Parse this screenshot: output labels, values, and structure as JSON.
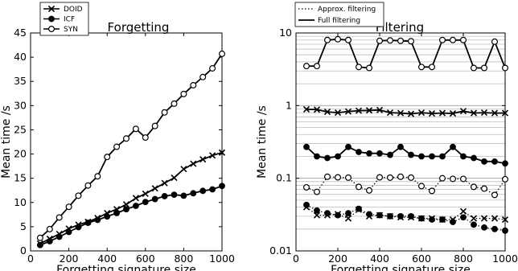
{
  "chart_data": [
    {
      "type": "line",
      "title": "Forgetting",
      "xlabel": "Forgetting signature size",
      "ylabel": "Mean time /s",
      "xlim": [
        0,
        1000
      ],
      "ylim": [
        0,
        45
      ],
      "xticks": [
        0,
        200,
        400,
        600,
        800,
        1000
      ],
      "yticks": [
        0,
        5,
        10,
        15,
        20,
        25,
        30,
        35,
        40,
        45
      ],
      "grid": false,
      "legend_position": "top-left (above axes)",
      "x": [
        50,
        100,
        150,
        200,
        250,
        300,
        350,
        400,
        450,
        500,
        550,
        600,
        650,
        700,
        750,
        800,
        850,
        900,
        950,
        1000
      ],
      "series": [
        {
          "name": "DOID",
          "marker": "x",
          "line": "solid",
          "values": [
            1.5,
            2.5,
            3.5,
            4.6,
            5.4,
            6.0,
            6.8,
            7.8,
            8.6,
            9.6,
            10.9,
            11.8,
            12.9,
            14.0,
            15.1,
            16.9,
            18.0,
            18.9,
            19.7,
            20.3
          ]
        },
        {
          "name": "ICF",
          "marker": "filled-circle",
          "line": "solid",
          "values": [
            1.2,
            2.0,
            2.9,
            3.9,
            4.9,
            5.8,
            6.4,
            7.1,
            7.8,
            8.6,
            9.3,
            10.1,
            10.7,
            11.3,
            11.6,
            11.4,
            11.9,
            12.4,
            12.7,
            13.4
          ]
        },
        {
          "name": "SYN",
          "marker": "open-circle",
          "line": "solid",
          "values": [
            2.7,
            4.5,
            6.9,
            9.1,
            11.4,
            13.5,
            15.4,
            19.4,
            21.5,
            23.2,
            25.2,
            23.4,
            25.8,
            28.6,
            30.4,
            32.4,
            34.2,
            35.9,
            37.7,
            40.7
          ]
        }
      ]
    },
    {
      "type": "line",
      "title": "Filtering",
      "xlabel": "Forgetting signature size",
      "ylabel": "Mean time /s",
      "xlim": [
        0,
        1000
      ],
      "ylim": [
        0.01,
        10
      ],
      "yscale": "log",
      "xticks": [
        0,
        200,
        400,
        600,
        800,
        1000
      ],
      "yticks": [
        0.01,
        0.1,
        1,
        10
      ],
      "ytick_labels": [
        "0.01",
        "0.1",
        "1",
        "10"
      ],
      "grid": "horizontal (major and minor)",
      "legend_position": "top-left (above axes)",
      "legend": [
        {
          "label": "Approx. filtering",
          "line": "dotted"
        },
        {
          "label": "Full filtering",
          "line": "solid"
        }
      ],
      "x": [
        50,
        100,
        150,
        200,
        250,
        300,
        350,
        400,
        450,
        500,
        550,
        600,
        650,
        700,
        750,
        800,
        850,
        900,
        950,
        1000
      ],
      "series": [
        {
          "group": "Full filtering",
          "marker": "open-circle",
          "line": "solid",
          "values": [
            3.5,
            3.5,
            8.0,
            8.2,
            8.0,
            3.4,
            3.3,
            7.8,
            7.9,
            7.8,
            7.7,
            3.4,
            3.4,
            8.0,
            8.0,
            8.0,
            3.3,
            3.3,
            7.6,
            3.3
          ]
        },
        {
          "group": "Full filtering",
          "marker": "x",
          "line": "solid",
          "values": [
            0.89,
            0.88,
            0.82,
            0.8,
            0.83,
            0.85,
            0.86,
            0.87,
            0.8,
            0.79,
            0.77,
            0.8,
            0.78,
            0.79,
            0.78,
            0.84,
            0.79,
            0.8,
            0.79,
            0.79
          ]
        },
        {
          "group": "Full filtering",
          "marker": "filled-circle",
          "line": "solid",
          "values": [
            0.27,
            0.2,
            0.19,
            0.2,
            0.27,
            0.23,
            0.22,
            0.22,
            0.21,
            0.27,
            0.21,
            0.2,
            0.2,
            0.2,
            0.27,
            0.2,
            0.19,
            0.17,
            0.17,
            0.16
          ]
        },
        {
          "group": "Approx. filtering",
          "marker": "open-circle",
          "line": "dotted",
          "values": [
            0.075,
            0.065,
            0.105,
            0.103,
            0.102,
            0.076,
            0.068,
            0.103,
            0.102,
            0.105,
            0.102,
            0.078,
            0.067,
            0.1,
            0.098,
            0.098,
            0.076,
            0.072,
            0.059,
            0.097
          ]
        },
        {
          "group": "Approx. filtering",
          "marker": "x",
          "line": "dotted",
          "values": [
            0.04,
            0.031,
            0.031,
            0.032,
            0.028,
            0.037,
            0.03,
            0.031,
            0.03,
            0.029,
            0.029,
            0.028,
            0.028,
            0.027,
            0.027,
            0.035,
            0.028,
            0.028,
            0.028,
            0.027
          ]
        },
        {
          "group": "Approx. filtering",
          "marker": "filled-circle",
          "line": "dotted",
          "values": [
            0.043,
            0.036,
            0.033,
            0.031,
            0.033,
            0.038,
            0.032,
            0.031,
            0.03,
            0.03,
            0.03,
            0.028,
            0.027,
            0.027,
            0.025,
            0.029,
            0.023,
            0.021,
            0.02,
            0.019
          ]
        }
      ]
    }
  ]
}
